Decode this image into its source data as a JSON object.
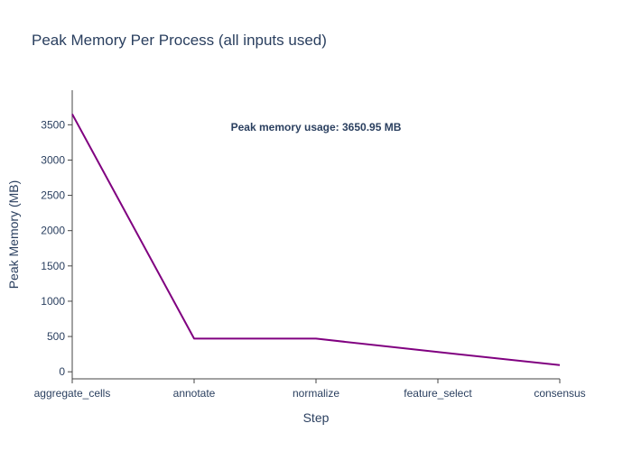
{
  "chart_data": {
    "type": "line",
    "title": "Peak Memory Per Process (all inputs used)",
    "xlabel": "Step",
    "ylabel": "Peak Memory (MB)",
    "categories": [
      "aggregate_cells",
      "annotate",
      "normalize",
      "feature_select",
      "consensus"
    ],
    "series": [
      {
        "values": [
          3650.95,
          470,
          470,
          280,
          95
        ],
        "color": "#800080"
      }
    ],
    "ylim": [
      -100,
      3990
    ],
    "yticks": [
      0,
      500,
      1000,
      1500,
      2000,
      2500,
      3000,
      3500
    ],
    "grid": false,
    "annotation": "Peak memory usage: 3650.95 MB"
  }
}
